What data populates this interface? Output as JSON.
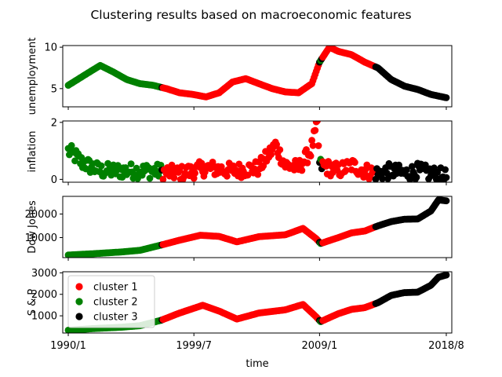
{
  "chart_data": {
    "type": "scatter",
    "title": "Clustering results based on macroeconomic features",
    "xlabel": "time",
    "x_ticks": [
      "1990/1",
      "1999/7",
      "2009/1",
      "2018/8"
    ],
    "x_range": [
      "1989/8",
      "2019/1"
    ],
    "legend": {
      "placement": "lower-left of bottom panel",
      "entries": [
        {
          "label": "cluster 1",
          "color": "#ff0000"
        },
        {
          "label": "cluster 2",
          "color": "#008000"
        },
        {
          "label": "cluster 3",
          "color": "#000000"
        }
      ]
    },
    "cluster_colors": {
      "1": "#ff0000",
      "2": "#008000",
      "3": "#000000"
    },
    "cluster_periods": [
      {
        "cluster": 2,
        "from": "1990/1",
        "to": "1997/1"
      },
      {
        "cluster": 1,
        "from": "1997/2",
        "to": "2008/12"
      },
      {
        "cluster": 2,
        "from": "2009/1",
        "to": "2009/2"
      },
      {
        "cluster": 1,
        "from": "2009/3",
        "to": "2013/3"
      },
      {
        "cluster": 3,
        "from": "2013/4",
        "to": "2018/8"
      }
    ],
    "panels": [
      {
        "ylabel": "unemployment",
        "y_ticks": [
          5,
          10
        ],
        "ylim": [
          2.8,
          10.2
        ],
        "points": [
          [
            "1990/1",
            5.4
          ],
          [
            "1991/1",
            6.4
          ],
          [
            "1992/6",
            7.8
          ],
          [
            "1993/6",
            7.0
          ],
          [
            "1994/6",
            6.1
          ],
          [
            "1995/6",
            5.6
          ],
          [
            "1996/6",
            5.4
          ],
          [
            "1997/6",
            5.0
          ],
          [
            "1998/6",
            4.5
          ],
          [
            "1999/6",
            4.3
          ],
          [
            "2000/6",
            4.0
          ],
          [
            "2001/6",
            4.5
          ],
          [
            "2002/6",
            5.8
          ],
          [
            "2003/6",
            6.2
          ],
          [
            "2004/6",
            5.6
          ],
          [
            "2005/6",
            5.0
          ],
          [
            "2006/6",
            4.6
          ],
          [
            "2007/6",
            4.5
          ],
          [
            "2008/6",
            5.6
          ],
          [
            "2009/1",
            8.2
          ],
          [
            "2009/10",
            10.0
          ],
          [
            "2010/6",
            9.5
          ],
          [
            "2011/6",
            9.1
          ],
          [
            "2012/6",
            8.2
          ],
          [
            "2013/6",
            7.5
          ],
          [
            "2014/6",
            6.1
          ],
          [
            "2015/6",
            5.3
          ],
          [
            "2016/6",
            4.9
          ],
          [
            "2017/6",
            4.3
          ],
          [
            "2018/8",
            3.9
          ]
        ]
      },
      {
        "ylabel": "inflation",
        "y_ticks": [
          0,
          2
        ],
        "ylim": [
          -0.1,
          2.05
        ],
        "points": [
          [
            "1990/1",
            1.0
          ],
          [
            "1990/8",
            0.8
          ],
          [
            "1991/1",
            0.6
          ],
          [
            "1992/6",
            0.3
          ],
          [
            "1994/6",
            0.3
          ],
          [
            "1996/6",
            0.3
          ],
          [
            "1998/6",
            0.2
          ],
          [
            "2000/6",
            0.4
          ],
          [
            "2002/6",
            0.3
          ],
          [
            "2004/6",
            0.4
          ],
          [
            "2005/9",
            1.2
          ],
          [
            "2006/6",
            0.5
          ],
          [
            "2007/6",
            0.4
          ],
          [
            "2008/5",
            1.0
          ],
          [
            "2008/11",
            1.9
          ],
          [
            "2009/1",
            0.5
          ],
          [
            "2010/6",
            0.3
          ],
          [
            "2011/6",
            0.5
          ],
          [
            "2012/6",
            0.3
          ],
          [
            "2013/6",
            0.2
          ],
          [
            "2014/6",
            0.3
          ],
          [
            "2015/6",
            0.2
          ],
          [
            "2016/6",
            0.3
          ],
          [
            "2017/6",
            0.2
          ],
          [
            "2018/8",
            0.1
          ]
        ]
      },
      {
        "ylabel": "Dow Jones",
        "y_ticks": [
          10000,
          20000
        ],
        "ylim": [
          1500,
          27500
        ],
        "points": [
          [
            "1990/1",
            2600
          ],
          [
            "1992/1",
            3200
          ],
          [
            "1994/1",
            3900
          ],
          [
            "1995/6",
            4600
          ],
          [
            "1997/1",
            6800
          ],
          [
            "1998/6",
            8900
          ],
          [
            "2000/1",
            11000
          ],
          [
            "2001/6",
            10500
          ],
          [
            "2002/10",
            8200
          ],
          [
            "2004/6",
            10400
          ],
          [
            "2006/6",
            11200
          ],
          [
            "2007/10",
            13900
          ],
          [
            "2008/10",
            9500
          ],
          [
            "2009/2",
            7500
          ],
          [
            "2010/6",
            10000
          ],
          [
            "2011/6",
            12000
          ],
          [
            "2012/6",
            12800
          ],
          [
            "2013/6",
            15000
          ],
          [
            "2014/6",
            16800
          ],
          [
            "2015/6",
            17800
          ],
          [
            "2016/6",
            17900
          ],
          [
            "2017/6",
            21300
          ],
          [
            "2018/1",
            26000
          ],
          [
            "2018/8",
            25600
          ]
        ]
      },
      {
        "ylabel": "S & P",
        "y_ticks": [
          1000,
          2000,
          3000
        ],
        "ylim": [
          200,
          3050
        ],
        "points": [
          [
            "1990/1",
            330
          ],
          [
            "1992/1",
            410
          ],
          [
            "1994/1",
            470
          ],
          [
            "1995/6",
            540
          ],
          [
            "1997/1",
            790
          ],
          [
            "1998/6",
            1130
          ],
          [
            "2000/3",
            1490
          ],
          [
            "2001/6",
            1220
          ],
          [
            "2002/10",
            850
          ],
          [
            "2004/6",
            1130
          ],
          [
            "2006/6",
            1280
          ],
          [
            "2007/10",
            1530
          ],
          [
            "2008/10",
            950
          ],
          [
            "2009/2",
            730
          ],
          [
            "2010/6",
            1100
          ],
          [
            "2011/6",
            1300
          ],
          [
            "2012/6",
            1380
          ],
          [
            "2013/6",
            1610
          ],
          [
            "2014/6",
            1950
          ],
          [
            "2015/6",
            2080
          ],
          [
            "2016/6",
            2100
          ],
          [
            "2017/6",
            2420
          ],
          [
            "2018/1",
            2800
          ],
          [
            "2018/8",
            2900
          ]
        ]
      }
    ]
  }
}
